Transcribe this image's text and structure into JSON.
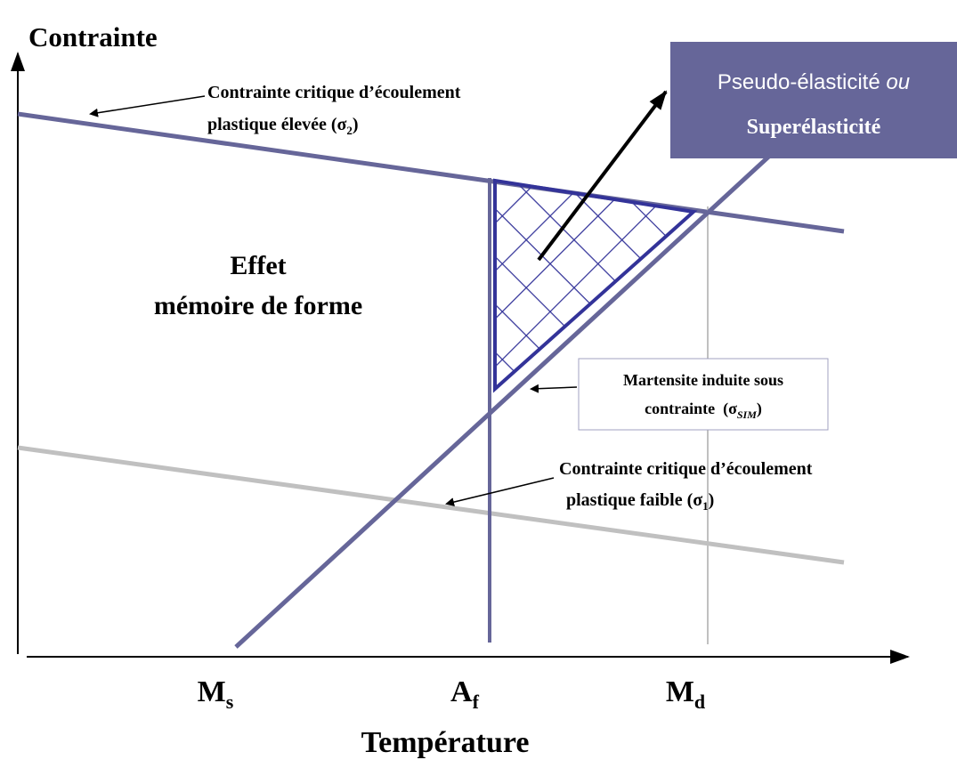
{
  "axes": {
    "y_label": "Contrainte",
    "x_label": "Température"
  },
  "temperatures": [
    {
      "symbol": "M",
      "subscript": "s"
    },
    {
      "symbol": "A",
      "subscript": "f"
    },
    {
      "symbol": "M",
      "subscript": "d"
    }
  ],
  "annotations": {
    "high_stress": {
      "line1": "Contrainte critique d’écoulement",
      "line2": "plastique élevée (",
      "symbol": "σ",
      "subscript": "2",
      "close": ")"
    },
    "shape_memory": {
      "line1": "Effet",
      "line2": "mémoire de forme"
    },
    "superelasticity": {
      "line1": "Pseudo-élasticité ",
      "line1_italic": "ou",
      "line2": "Superélasticité"
    },
    "sim": {
      "line1": "Martensite induite sous",
      "line2": "contrainte  (",
      "symbol": "σ",
      "subscript": "SIM",
      "close": ")"
    },
    "low_stress": {
      "line1": "Contrainte critique d’écoulement",
      "line2": "plastique faible (",
      "symbol": "σ",
      "subscript": "1",
      "close": ")"
    }
  }
}
